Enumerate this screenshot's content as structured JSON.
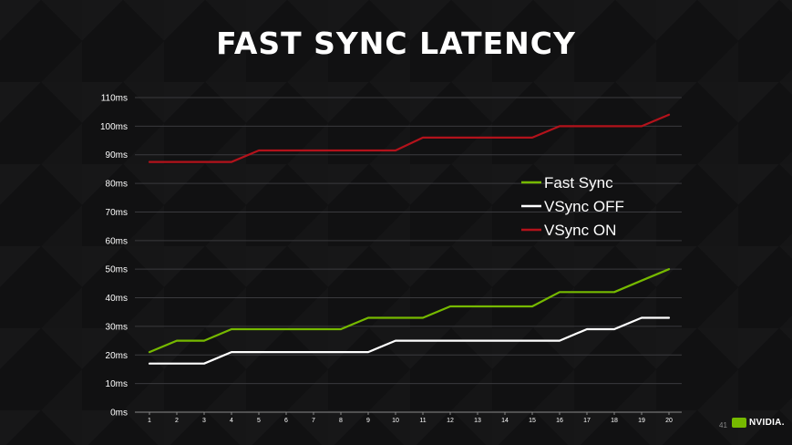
{
  "title": "FAST SYNC LATENCY",
  "page_number": "41",
  "logo_text": "NVIDIA.",
  "chart_data": {
    "type": "line",
    "x": [
      1,
      2,
      3,
      4,
      5,
      6,
      7,
      8,
      9,
      10,
      11,
      12,
      13,
      14,
      15,
      16,
      17,
      18,
      19,
      20
    ],
    "y_ticks": [
      "0ms",
      "10ms",
      "20ms",
      "30ms",
      "40ms",
      "50ms",
      "60ms",
      "70ms",
      "80ms",
      "90ms",
      "100ms",
      "110ms"
    ],
    "ylim": [
      0,
      110
    ],
    "grid": true,
    "legend_position": "right-middle",
    "series": [
      {
        "name": "Fast Sync",
        "color": "#76b900",
        "values": [
          21,
          25,
          25,
          29,
          29,
          29,
          29,
          29,
          33,
          33,
          33,
          37,
          37,
          37,
          37,
          42,
          42,
          42,
          46,
          50
        ]
      },
      {
        "name": "VSync OFF",
        "color": "#ffffff",
        "values": [
          17,
          17,
          17,
          21,
          21,
          21,
          21,
          21,
          21,
          25,
          25,
          25,
          25,
          25,
          25,
          25,
          29,
          29,
          33,
          33
        ]
      },
      {
        "name": "VSync ON",
        "color": "#b3121b",
        "values": [
          87.5,
          87.5,
          87.5,
          87.5,
          91.5,
          91.5,
          91.5,
          91.5,
          91.5,
          91.5,
          96,
          96,
          96,
          96,
          96,
          100,
          100,
          100,
          100,
          104
        ]
      }
    ]
  }
}
